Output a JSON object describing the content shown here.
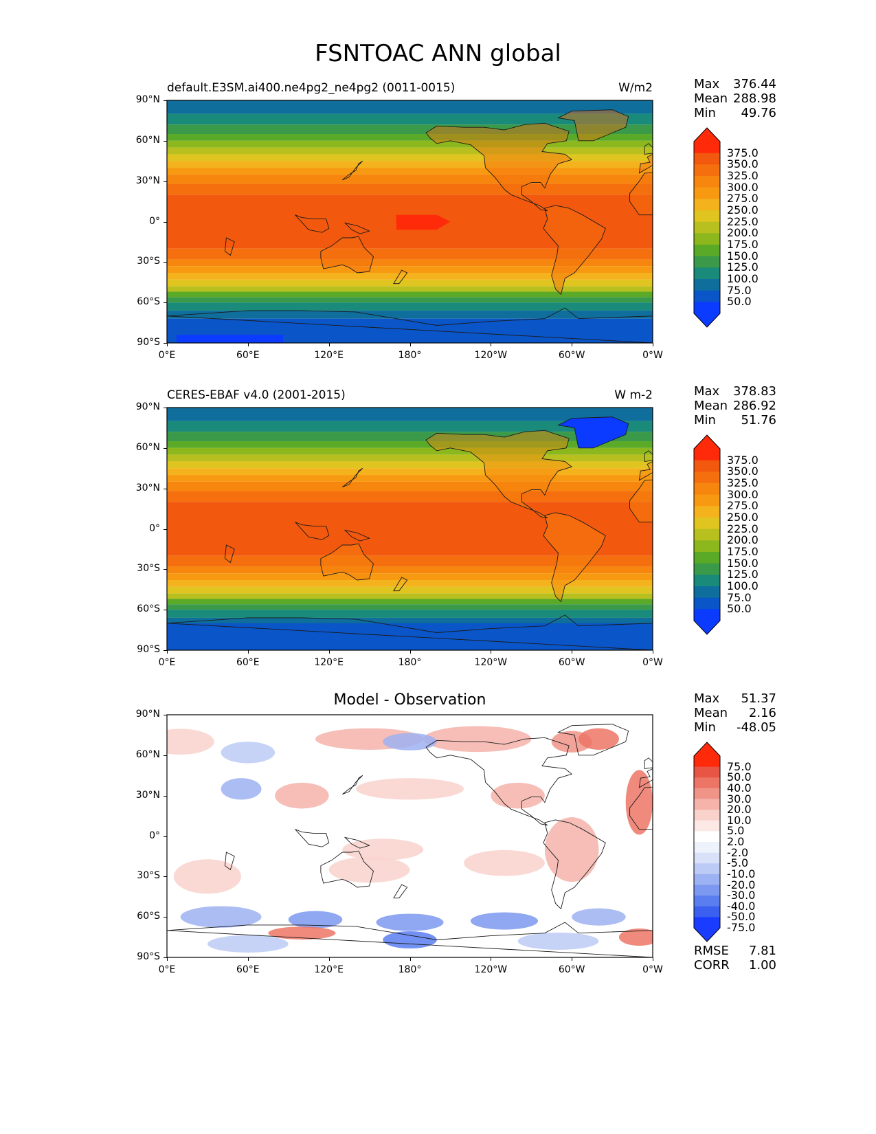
{
  "figure": {
    "title": "FSNTOAC ANN global"
  },
  "axes": {
    "lat_ticks": [
      "90°N",
      "60°N",
      "30°N",
      "0°",
      "30°S",
      "60°S",
      "90°S"
    ],
    "lon_ticks": [
      "0°E",
      "60°E",
      "120°E",
      "180°",
      "120°W",
      "60°W",
      "0°W"
    ]
  },
  "panels": [
    {
      "id": "model",
      "title_left": "default.E3SM.ai400.ne4pg2_ne4pg2 (0011-0015)",
      "title_right": "W/m2",
      "title_center": "",
      "stats": {
        "max_label": "Max",
        "max": "376.44",
        "mean_label": "Mean",
        "mean": "288.98",
        "min_label": "Min",
        "min": "49.76"
      },
      "colorbar_labels": [
        "375.0",
        "350.0",
        "325.0",
        "300.0",
        "275.0",
        "250.0",
        "225.0",
        "200.0",
        "175.0",
        "150.0",
        "125.0",
        "100.0",
        "75.0",
        "50.0"
      ]
    },
    {
      "id": "obs",
      "title_left": "CERES-EBAF v4.0 (2001-2015)",
      "title_right": "W m-2",
      "title_center": "",
      "stats": {
        "max_label": "Max",
        "max": "378.83",
        "mean_label": "Mean",
        "mean": "286.92",
        "min_label": "Min",
        "min": "51.76"
      },
      "colorbar_labels": [
        "375.0",
        "350.0",
        "325.0",
        "300.0",
        "275.0",
        "250.0",
        "225.0",
        "200.0",
        "175.0",
        "150.0",
        "125.0",
        "100.0",
        "75.0",
        "50.0"
      ]
    },
    {
      "id": "diff",
      "title_left": "",
      "title_right": "",
      "title_center": "Model - Observation",
      "stats": {
        "max_label": "Max",
        "max": "51.37",
        "mean_label": "Mean",
        "mean": "2.16",
        "min_label": "Min",
        "min": "-48.05"
      },
      "colorbar_labels": [
        "75.0",
        "50.0",
        "40.0",
        "30.0",
        "20.0",
        "10.0",
        "5.0",
        "2.0",
        "-2.0",
        "-5.0",
        "-10.0",
        "-20.0",
        "-30.0",
        "-40.0",
        "-50.0",
        "-75.0"
      ],
      "metrics": {
        "rmse_label": "RMSE",
        "rmse": "7.81",
        "corr_label": "CORR",
        "corr": "1.00"
      }
    }
  ],
  "colors": {
    "seq": [
      "#0b3bff",
      "#0a55c8",
      "#0f6e9c",
      "#1a8a7a",
      "#3a9a4a",
      "#5aaa28",
      "#8cb81e",
      "#b8c020",
      "#e0c41f",
      "#f4b21c",
      "#f79a12",
      "#f7860e",
      "#f56f0e",
      "#f2580e",
      "#ff2a0a"
    ],
    "div": [
      "#1a3cff",
      "#3b60f0",
      "#5a7ef0",
      "#7c98f0",
      "#9db2f2",
      "#bccbf5",
      "#d8e1f8",
      "#eef2fb",
      "#ffffff",
      "#fce9e6",
      "#f9d2cc",
      "#f5b3aa",
      "#f09488",
      "#ec7566",
      "#e85544",
      "#ff2a0a"
    ]
  }
}
